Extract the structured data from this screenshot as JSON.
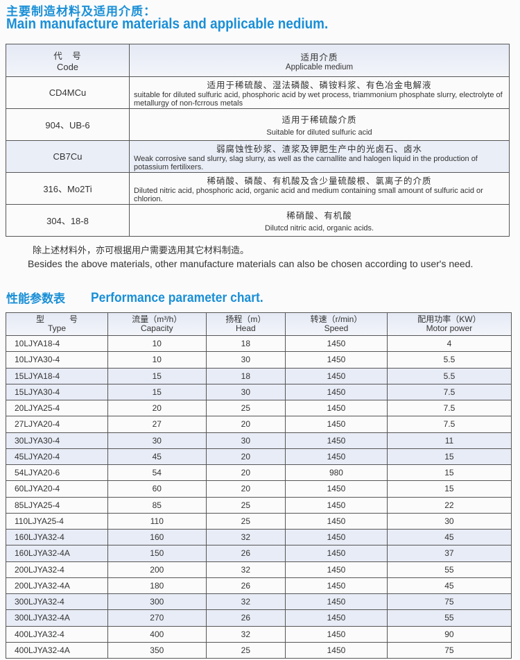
{
  "materials": {
    "title_zh": "主要制造材料及适用介质：",
    "title_en": "Main manufacture materials and applicable nedium.",
    "header": {
      "code_zh": "代　号",
      "code_en": "Code",
      "medium_zh": "适用介质",
      "medium_en": "Applicable medium"
    },
    "rows": [
      {
        "code": "CD4MCu",
        "zh": "适用于稀硫酸、湿法磷酸、磷铵料浆、有色冶金电解液",
        "en": "suitable for diluted sulfuric acid, phosphoric acid by wet process,  triammonium phosphate slurry, electrolyte of metallurgy of non-fcrrous metals"
      },
      {
        "code": "904、UB-6",
        "zh": "适用于稀硫酸介质",
        "en": "Suitable for diluted sulfuric acid"
      },
      {
        "code": "CB7Cu",
        "zh": "弱腐蚀性砂浆、渣浆及钾肥生产中的光卤石、卤水",
        "en": "Weak corrosive sand slurry, slag slurry, as well as the carnallite and halogen liquid in the production of potassium fertilixers."
      },
      {
        "code": "316、Mo2Ti",
        "zh": "稀硝酸、磷酸、有机酸及含少量硫酸根、氯离子的介质",
        "en": "Diluted nitric acid, phosphoric acid, organic acid and medium containing small amount of sulfuric acid or chlorion."
      },
      {
        "code": "304、18-8",
        "zh": "稀硝酸、有机酸",
        "en": "Dilutcd nitric acid, organic acids."
      }
    ],
    "note_zh": "除上述材料外，亦可根据用户需要选用其它材料制造。",
    "note_en": "Besides the above materials, other manufacture materials can also be chosen according to user's need."
  },
  "performance": {
    "title_zh": "性能参数表",
    "title_en": "Performance parameter chart.",
    "headers": [
      {
        "zh": "型　　　号",
        "en": "Type"
      },
      {
        "zh": "流量（m³/h）",
        "en": "Capacity"
      },
      {
        "zh": "扬程（m）",
        "en": "Head"
      },
      {
        "zh": "转速（r/min）",
        "en": "Speed"
      },
      {
        "zh": "配用功率（KW）",
        "en": "Motor power"
      }
    ],
    "rows": [
      [
        "10LJYA18-4",
        "10",
        "18",
        "1450",
        "4"
      ],
      [
        "10LJYA30-4",
        "10",
        "30",
        "1450",
        "5.5"
      ],
      [
        "15LJYA18-4",
        "15",
        "18",
        "1450",
        "5.5"
      ],
      [
        "15LJYA30-4",
        "15",
        "30",
        "1450",
        "7.5"
      ],
      [
        "20LJYA25-4",
        "20",
        "25",
        "1450",
        "7.5"
      ],
      [
        "27LJYA20-4",
        "27",
        "20",
        "1450",
        "7.5"
      ],
      [
        "30LJYA30-4",
        "30",
        "30",
        "1450",
        "11"
      ],
      [
        "45LJYA20-4",
        "45",
        "20",
        "1450",
        "15"
      ],
      [
        "54LJYA20-6",
        "54",
        "20",
        "980",
        "15"
      ],
      [
        "60LJYA20-4",
        "60",
        "20",
        "1450",
        "15"
      ],
      [
        "85LJYA25-4",
        "85",
        "25",
        "1450",
        "22"
      ],
      [
        "110LJYA25-4",
        "110",
        "25",
        "1450",
        "30"
      ],
      [
        "160LJYA32-4",
        "160",
        "32",
        "1450",
        "45"
      ],
      [
        "160LJYA32-4A",
        "150",
        "26",
        "1450",
        "37"
      ],
      [
        "200LJYA32-4",
        "200",
        "32",
        "1450",
        "55"
      ],
      [
        "200LJYA32-4A",
        "180",
        "26",
        "1450",
        "45"
      ],
      [
        "300LJYA32-4",
        "300",
        "32",
        "1450",
        "75"
      ],
      [
        "300LJYA32-4A",
        "270",
        "26",
        "1450",
        "55"
      ],
      [
        "400LJYA32-4",
        "400",
        "32",
        "1450",
        "90"
      ],
      [
        "400LJYA32-4A",
        "350",
        "25",
        "1450",
        "75"
      ]
    ]
  },
  "colors": {
    "heading": "#1a8fd6",
    "shade": "#e8ecf6"
  }
}
